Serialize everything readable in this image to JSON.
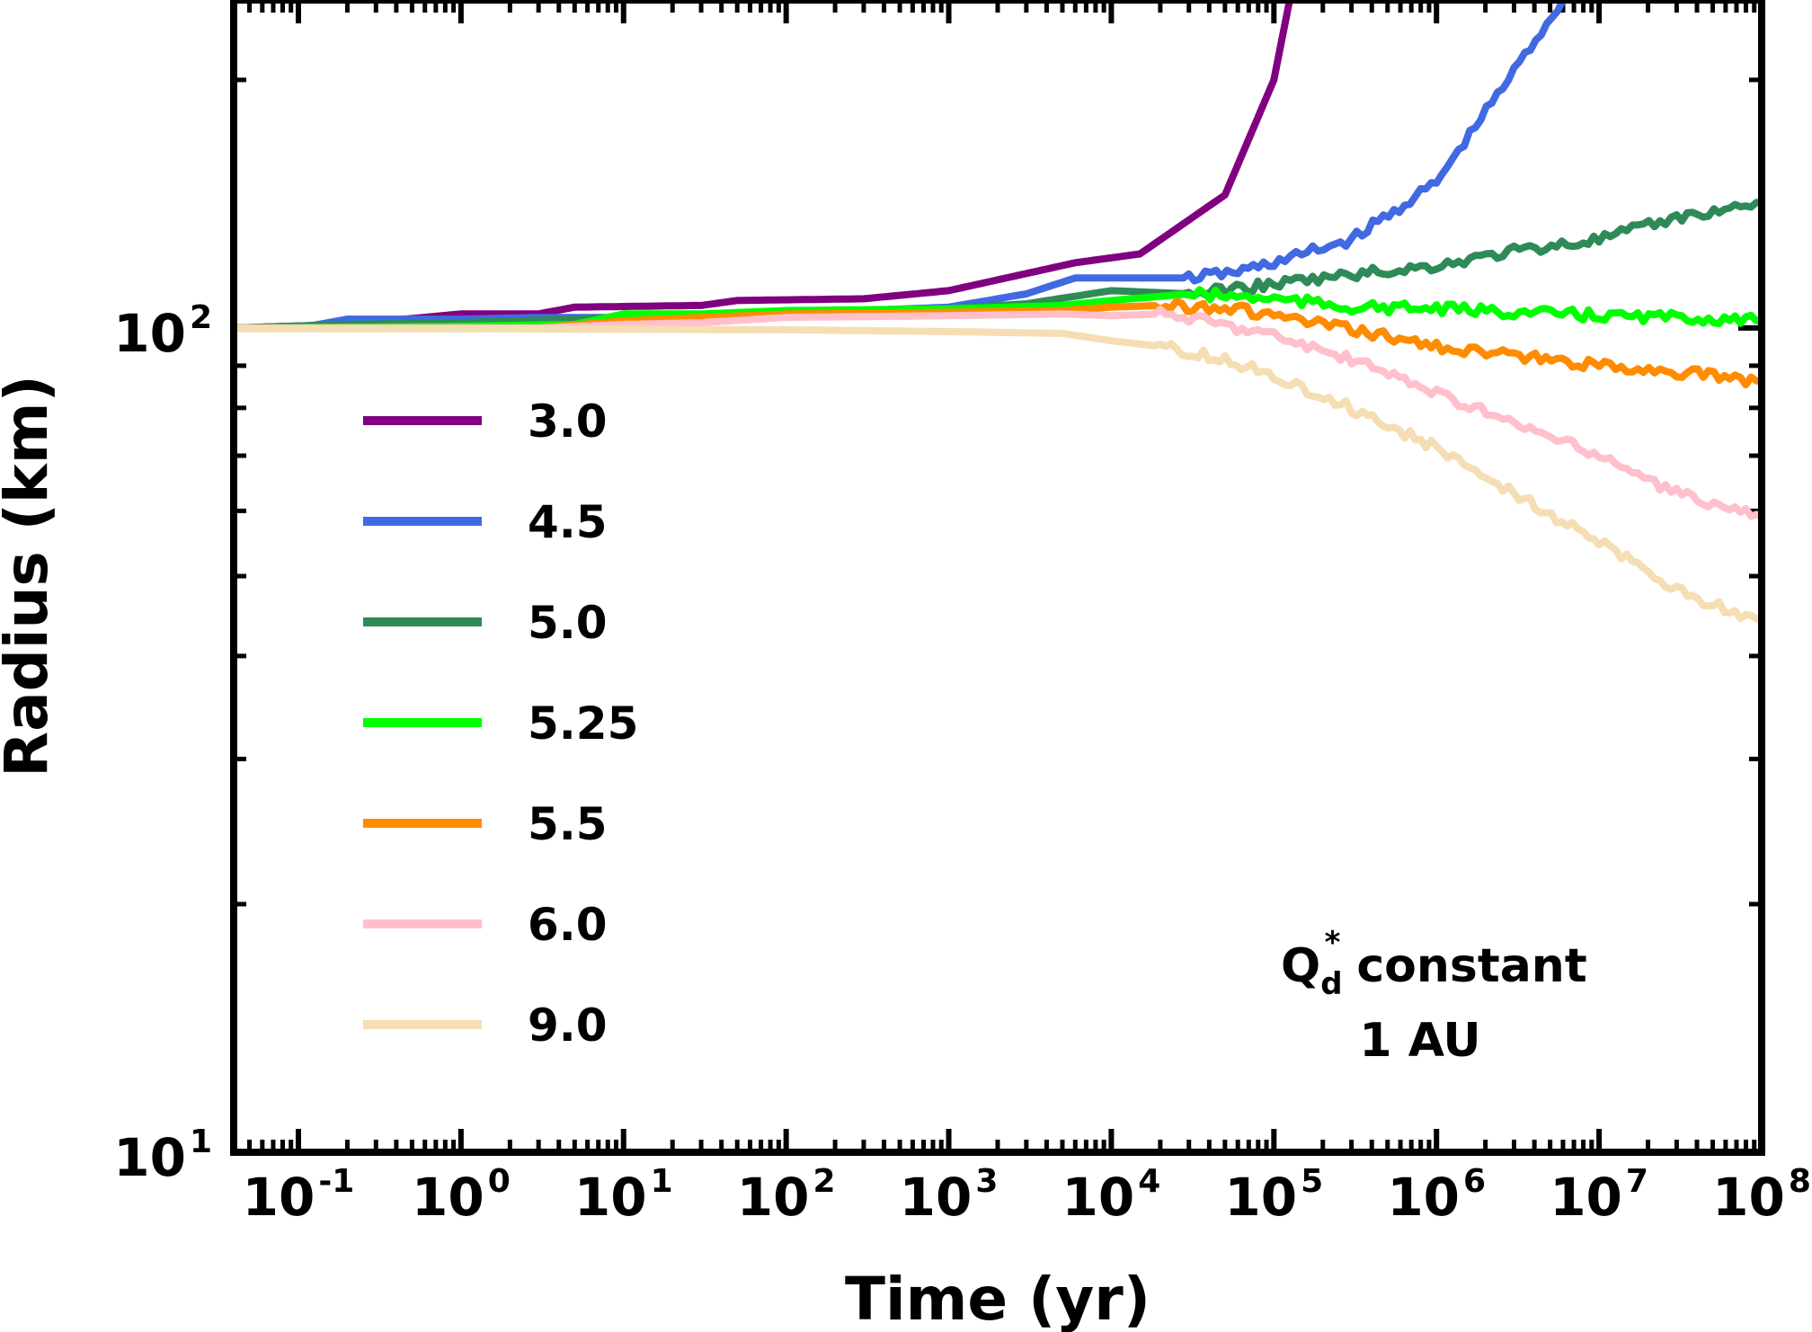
{
  "chart_data": {
    "type": "line",
    "xscale": "log",
    "yscale": "log",
    "xlim": [
      0.04,
      100000000
    ],
    "ylim": [
      10,
      250
    ],
    "xlabel": "Time (yr)",
    "ylabel": "Radius (km)",
    "xticks": [
      {
        "value": 0.1,
        "base": "10",
        "exp": "-1"
      },
      {
        "value": 1,
        "base": "10",
        "exp": "0"
      },
      {
        "value": 10,
        "base": "10",
        "exp": "1"
      },
      {
        "value": 100,
        "base": "10",
        "exp": "2"
      },
      {
        "value": 1000,
        "base": "10",
        "exp": "3"
      },
      {
        "value": 10000,
        "base": "10",
        "exp": "4"
      },
      {
        "value": 100000,
        "base": "10",
        "exp": "5"
      },
      {
        "value": 1000000,
        "base": "10",
        "exp": "6"
      },
      {
        "value": 10000000,
        "base": "10",
        "exp": "7"
      },
      {
        "value": 100000000,
        "base": "10",
        "exp": "8"
      }
    ],
    "yticks": [
      {
        "value": 10,
        "base": "10",
        "exp": "1"
      },
      {
        "value": 100,
        "base": "10",
        "exp": "2"
      }
    ],
    "grid": false,
    "legend_position": "left",
    "annotation": {
      "q": "Q",
      "sub": "d",
      "sup": "*",
      "rest": "constant",
      "line2": "1 AU"
    },
    "series": [
      {
        "name": "3.0",
        "color": "#800080",
        "x": [
          0.04,
          0.2,
          1,
          3,
          5,
          30,
          50,
          300,
          1000,
          6000,
          15000,
          50000,
          100000,
          130000,
          150000
        ],
        "y": [
          100,
          101,
          104,
          104,
          106,
          106.5,
          108,
          108.5,
          111,
          120,
          123,
          145,
          200,
          260,
          300
        ]
      },
      {
        "name": "4.5",
        "color": "#4169E1",
        "x": [
          0.04,
          0.1,
          0.2,
          1,
          3,
          10,
          50,
          100,
          300,
          1000,
          3000,
          6000,
          15000,
          30000,
          60000,
          100000,
          300000,
          1000000,
          3000000,
          6000000
        ],
        "y": [
          100,
          100,
          102.5,
          102.5,
          103,
          103,
          104,
          104,
          105,
          106,
          110,
          115,
          115,
          115,
          117,
          120,
          128,
          150,
          205,
          250
        ]
      },
      {
        "name": "5.0",
        "color": "#2E8B57",
        "x": [
          0.04,
          0.2,
          1,
          10,
          100,
          1000,
          3000,
          10000,
          30000,
          100000,
          300000,
          1000000,
          3000000,
          10000000,
          30000000,
          100000000
        ],
        "y": [
          100,
          101,
          101.5,
          103,
          104.5,
          105.5,
          107,
          111,
          110,
          113,
          116,
          119,
          124,
          128,
          136,
          142
        ]
      },
      {
        "name": "5.25",
        "color": "#00FF00",
        "x": [
          0.04,
          1,
          5,
          10,
          30,
          100,
          1000,
          5000,
          10000,
          30000,
          100000,
          300000,
          1000000,
          3000000,
          10000000,
          30000000,
          100000000
        ],
        "y": [
          100,
          100.5,
          101,
          104,
          104,
          105,
          105.5,
          106.5,
          108,
          110,
          108.5,
          106,
          105.5,
          104.5,
          103.5,
          103,
          102
        ]
      },
      {
        "name": "5.5",
        "color": "#FF8C00",
        "x": [
          0.04,
          3,
          10,
          30,
          100,
          1000,
          5000,
          10000,
          20000,
          50000,
          100000,
          300000,
          1000000,
          3000000,
          10000000,
          30000000,
          100000000
        ],
        "y": [
          100,
          100,
          102,
          103,
          104,
          104.5,
          105,
          106,
          106.5,
          106,
          103.5,
          99.5,
          95,
          92.5,
          90,
          88.5,
          86
        ]
      },
      {
        "name": "6.0",
        "color": "#FFC0CB",
        "x": [
          0.04,
          3,
          10,
          30,
          100,
          1000,
          5000,
          10000,
          20000,
          30000,
          100000,
          300000,
          1000000,
          3000000,
          10000000,
          30000000,
          100000000
        ],
        "y": [
          100,
          100,
          101,
          101.5,
          103,
          103.5,
          104,
          103.5,
          104,
          103,
          98,
          91.5,
          83.5,
          76.5,
          70,
          63,
          59
        ]
      },
      {
        "name": "9.0",
        "color": "#F5DEB3",
        "x": [
          0.04,
          1,
          100,
          1000,
          5000,
          10000,
          20000,
          50000,
          100000,
          300000,
          1000000,
          3000000,
          10000000,
          30000000,
          100000000
        ],
        "y": [
          99.8,
          99.8,
          99.5,
          99,
          98.5,
          96.5,
          95,
          91.5,
          87.5,
          80,
          71.5,
          63,
          55,
          48,
          44
        ]
      }
    ]
  }
}
